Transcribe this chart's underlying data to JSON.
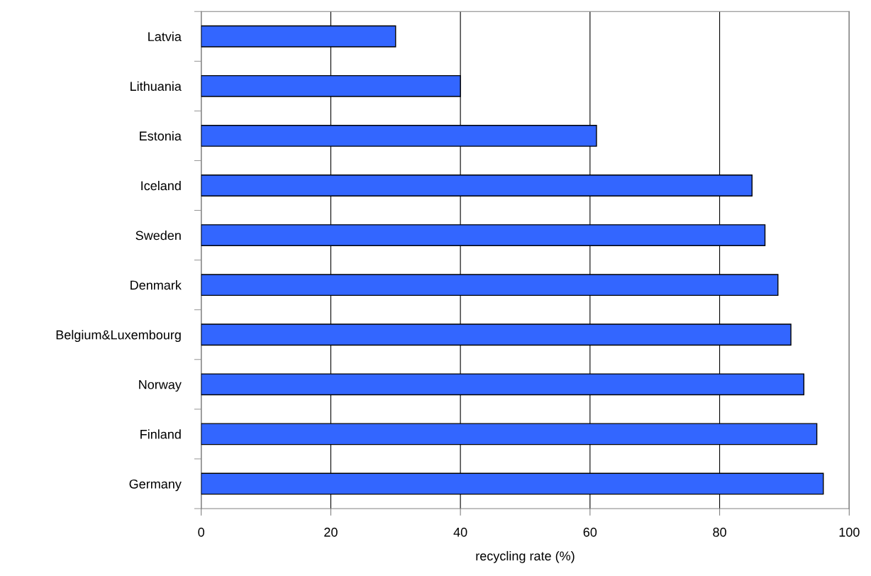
{
  "chart_data": {
    "type": "bar",
    "orientation": "horizontal",
    "xlabel": "recycling rate (%)",
    "categories": [
      "Latvia",
      "Lithuania",
      "Estonia",
      "Iceland",
      "Sweden",
      "Denmark",
      "Belgium&Luxembourg",
      "Norway",
      "Finland",
      "Germany"
    ],
    "values": [
      30,
      40,
      61,
      85,
      87,
      89,
      91,
      93,
      95,
      96
    ],
    "color": "#3366ff",
    "xlim": [
      0,
      100
    ],
    "xticks": [
      0,
      20,
      40,
      60,
      80,
      100
    ],
    "grid": "x",
    "legend": false
  }
}
